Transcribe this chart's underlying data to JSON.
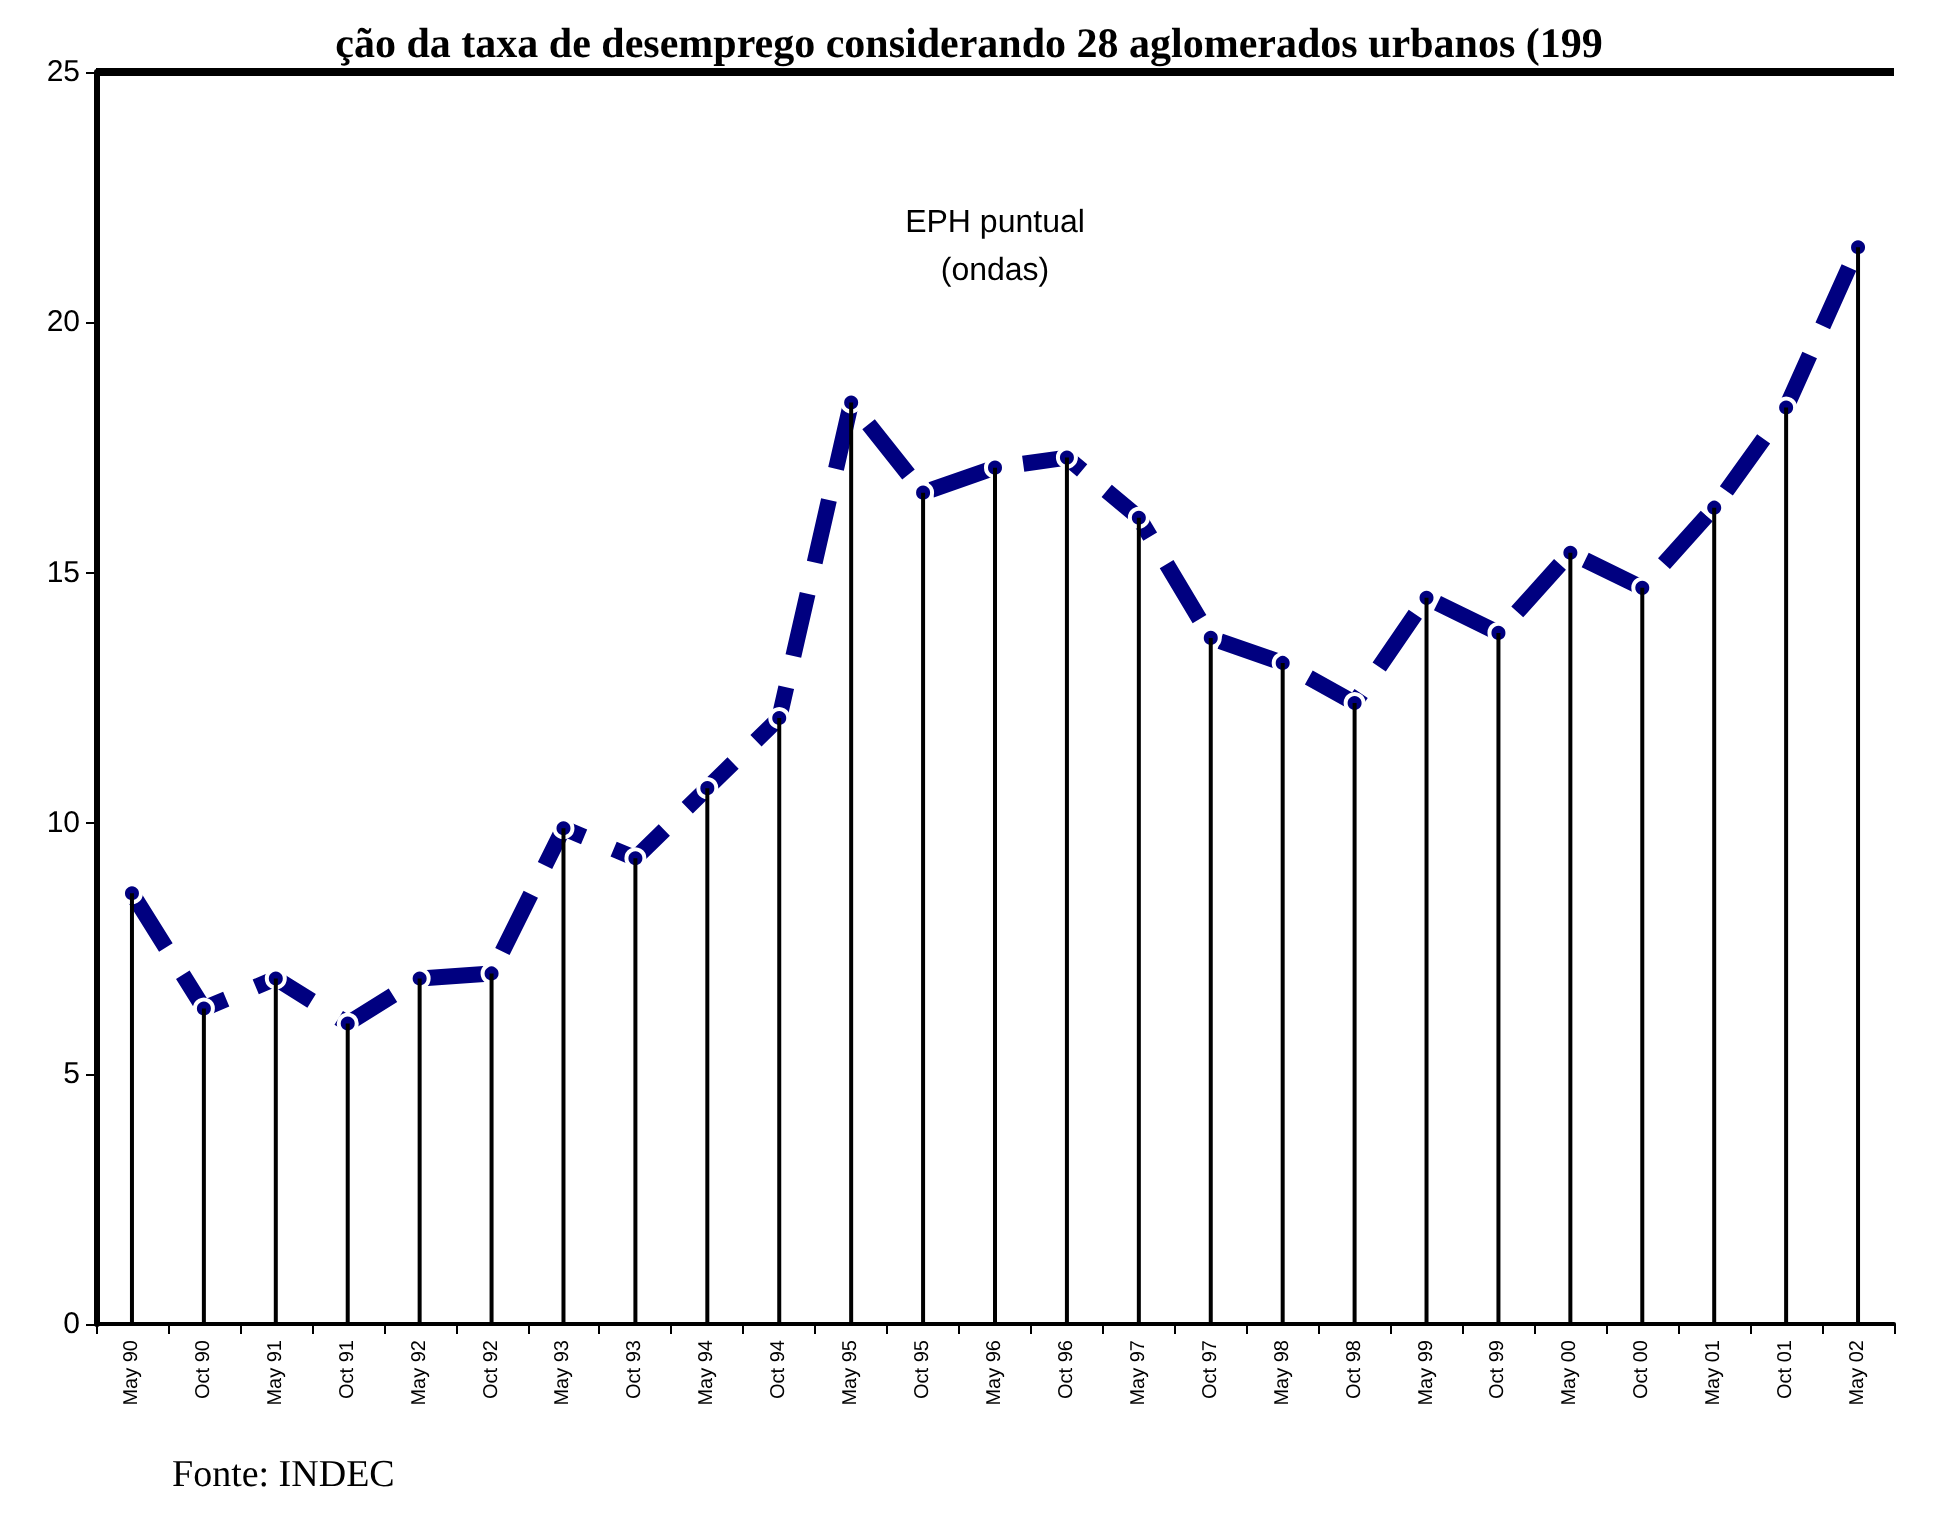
{
  "chart_data": {
    "type": "line",
    "title": "ção da taxa de desemprego considerando 28 aglomerados urbanos (199",
    "categories": [
      "May 90",
      "Oct 90",
      "May 91",
      "Oct 91",
      "May 92",
      "Oct 92",
      "May 93",
      "Oct 93",
      "May 94",
      "Oct 94",
      "May 95",
      "Oct 95",
      "May 96",
      "Oct 96",
      "May 97",
      "Oct 97",
      "May 98",
      "Oct 98",
      "May 99",
      "Oct 99",
      "May 00",
      "Oct 00",
      "May 01",
      "Oct 01",
      "May 02"
    ],
    "series": [
      {
        "type": "bar",
        "color": "#000000",
        "values": [
          8.6,
          6.3,
          6.9,
          6.0,
          6.9,
          7.0,
          9.9,
          9.3,
          10.7,
          12.1,
          18.4,
          16.6,
          17.1,
          17.3,
          16.1,
          13.7,
          13.2,
          12.4,
          14.5,
          13.8,
          15.4,
          14.7,
          16.3,
          18.3,
          21.5
        ]
      },
      {
        "color": "#000080",
        "values": [
          8.6,
          6.3,
          6.9,
          6.0,
          6.9,
          7.0,
          9.9,
          9.3,
          10.7,
          12.1,
          18.4,
          16.6,
          17.1,
          17.3,
          16.1,
          13.7,
          13.2,
          12.4,
          14.5,
          13.8,
          15.4,
          14.7,
          16.3,
          18.3,
          21.5
        ]
      }
    ],
    "ylim": [
      0,
      25
    ],
    "yticks": [
      0,
      5,
      10,
      15,
      20,
      25
    ],
    "grid": false,
    "marker": "circle",
    "line_style": "dashed",
    "annotations": [
      "EPH puntual\n(ondas)",
      "Fonte: INDEC"
    ]
  }
}
